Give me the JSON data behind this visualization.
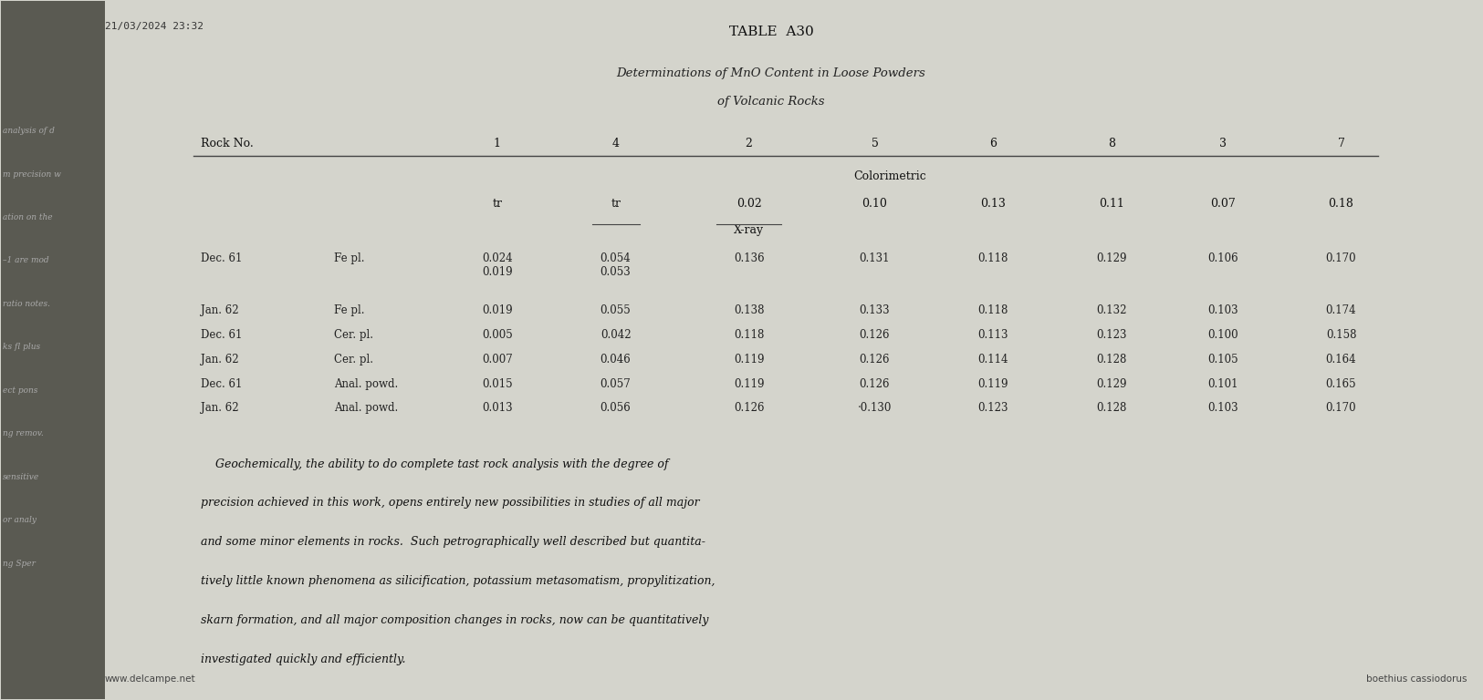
{
  "title": "TABLE  A30",
  "subtitle1": "Determinations of MnO Content in Loose Powders",
  "subtitle2": "of Volcanic Rocks",
  "page_bg": "#d4d4cc",
  "content_bg": "#d8d8d0",
  "left_bg": "#5a5a52",
  "timestamp": "21/03/2024 23:32",
  "watermark": "www.delcampe.net",
  "watermark2": "boethius cassiodorus",
  "header_row": [
    "Rock No.",
    "1",
    "4",
    "2",
    "5",
    "6",
    "8",
    "3",
    "7"
  ],
  "colorimetric_label": "Colorimetric",
  "colorimetric_values": [
    "tr",
    "tr",
    "0.02",
    "0.10",
    "0.13",
    "0.11",
    "0.07",
    "0.18"
  ],
  "xray_label": "X-ray",
  "col_keys": [
    "1",
    "4",
    "2",
    "5",
    "6",
    "8",
    "3",
    "7"
  ],
  "col_x": {
    "date": 0.135,
    "material": 0.225,
    "1": 0.335,
    "4": 0.415,
    "2": 0.505,
    "5": 0.59,
    "6": 0.67,
    "8": 0.75,
    "3": 0.825,
    "7": 0.905
  },
  "data_rows": [
    [
      "Dec. 61",
      "Fe pl.",
      0.64,
      "0.024\n0.019",
      "0.054\n0.053",
      "0.136",
      "0.131",
      "0.118",
      "0.129",
      "0.106",
      "0.170"
    ],
    [
      "Jan. 62",
      "Fe pl.",
      0.565,
      "0.019",
      "0.055",
      "0.138",
      "0.133",
      "0.118",
      "0.132",
      "0.103",
      "0.174"
    ],
    [
      "Dec. 61",
      "Cer. pl.",
      0.53,
      "0.005",
      "0.042",
      "0.118",
      "0.126",
      "0.113",
      "0.123",
      "0.100",
      "0.158"
    ],
    [
      "Jan. 62",
      "Cer. pl.",
      0.495,
      "0.007",
      "0.046",
      "0.119",
      "0.126",
      "0.114",
      "0.128",
      "0.105",
      "0.164"
    ],
    [
      "Dec. 61",
      "Anal. powd.",
      0.46,
      "0.015",
      "0.057",
      "0.119",
      "0.126",
      "0.119",
      "0.129",
      "0.101",
      "0.165"
    ],
    [
      "Jan. 62",
      "Anal. powd.",
      0.425,
      "0.013",
      "0.056",
      "0.126",
      "·0.130",
      "0.123",
      "0.128",
      "0.103",
      "0.170"
    ]
  ],
  "spine_texts": [
    "analysis of d",
    "m precision w",
    "ation on the",
    "–1 are mod",
    "ratio notes.",
    "ks fl plus",
    "ect pons",
    "ng remov.",
    "sensitive",
    "or analy",
    "ng Sper"
  ],
  "paragraph_lines": [
    "    Geochemically, the ability to do complete tast rock analysis with the degree of",
    "precision achieved in this work, opens entirely new possibilities in studies of all major",
    "and some minor elements in rocks.  Such petrographically well described but quantita-",
    "tively little known phenomena as silicification, potassium metasomatism, propylitization,",
    "skarn formation, and all major composition changes in rocks, now can be quantitatively",
    "investigated quickly and efficiently."
  ]
}
